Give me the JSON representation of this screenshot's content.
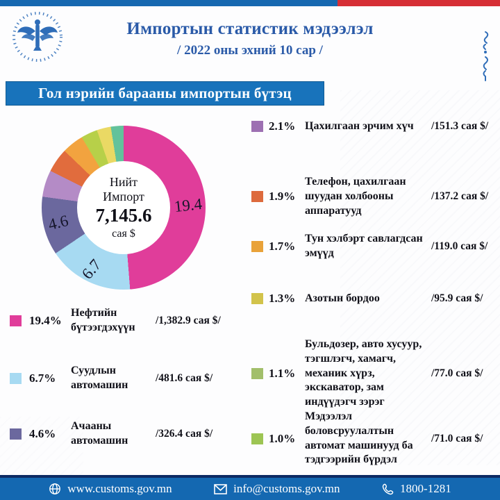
{
  "header": {
    "title": "Импортын статистик мэдээлэл",
    "subtitle": "/ 2022 оны эхний 10 сар /"
  },
  "banner": {
    "title": "Гол нэрийн барааны импортын бүтэц"
  },
  "colors": {
    "stripe_blue": "#1668b0",
    "stripe_red": "#d62f35",
    "banner_bg": "#1873bb",
    "footer_bg": "#1468b1",
    "footer_line": "#0d2a63",
    "title_color": "#2a5aa8",
    "logo_blue": "#2f6db8"
  },
  "chart_data": {
    "type": "pie",
    "donut": true,
    "title": "Гол нэрийн барааны импортын бүтэц",
    "center": {
      "line1": "Нийт",
      "line2": "Импорт",
      "total": "7,145.6",
      "unit": "сая $"
    },
    "legend_position": "around",
    "items": [
      {
        "pct": 19.4,
        "pct_label": "19.4%",
        "name": "Нефтийн бүтээгдэхүүн",
        "value": "/1,382.9 сая $/",
        "swatch": "#e03d9a",
        "slice": "#e03d9a"
      },
      {
        "pct": 6.7,
        "pct_label": "6.7%",
        "name": "Суудлын автомашин",
        "value": "/481.6 сая $/",
        "swatch": "#a7daf2",
        "slice": "#a7daf2"
      },
      {
        "pct": 4.6,
        "pct_label": "4.6%",
        "name": "Ачааны автомашин",
        "value": "/326.4 сая $/",
        "swatch": "#6b689e",
        "slice": "#6b689e"
      },
      {
        "pct": 2.1,
        "pct_label": "2.1%",
        "name": "Цахилгаан эрчим хүч",
        "value": "/151.3 сая $/",
        "swatch": "#9d70b2",
        "slice": "#b48bc6"
      },
      {
        "pct": 1.9,
        "pct_label": "1.9%",
        "name": "Телефон, цахилгаан шуудан холбооны аппаратууд",
        "value": "/137.2 сая $/",
        "swatch": "#dd6a3d",
        "slice": "#e16c3d"
      },
      {
        "pct": 1.7,
        "pct_label": "1.7%",
        "name": "Тун хэлбэрт савлагдсан эмүүд",
        "value": "/119.0 сая $/",
        "swatch": "#e9a239",
        "slice": "#f2a33f"
      },
      {
        "pct": 1.3,
        "pct_label": "1.3%",
        "name": "Азотын бордоо",
        "value": "/95.9 сая $/",
        "swatch": "#d2c34b",
        "slice": "#b7d049"
      },
      {
        "pct": 1.1,
        "pct_label": "1.1%",
        "name": "Бульдозер, авто хусуур, тэгшлэгч, хамагч, механик хүрз, экскаватор, зам индүүдэгч зэрэг",
        "value": "/77.0 сая $/",
        "swatch": "#a2bf6b",
        "slice": "#ead964"
      },
      {
        "pct": 1.0,
        "pct_label": "1.0%",
        "name": "Мэдээлэл боловсруулалтын автомат машинууд ба тэдгээрийн бүрдэл",
        "value": "/71.0 сая $/",
        "swatch": "#9dc553",
        "slice": "#63c29b"
      }
    ],
    "slice_labels": [
      {
        "text": "19.4",
        "angle": 88,
        "radius": 0.79,
        "rotate": -6
      },
      {
        "text": "6.7",
        "angle": 207,
        "radius": 0.85,
        "rotate": -50
      },
      {
        "text": "4.6",
        "angle": 257,
        "radius": 0.82,
        "rotate": -14
      }
    ]
  },
  "footer": {
    "website": "www.customs.gov.mn",
    "email": "info@customs.gov.mn",
    "phone": "1800-1281"
  }
}
